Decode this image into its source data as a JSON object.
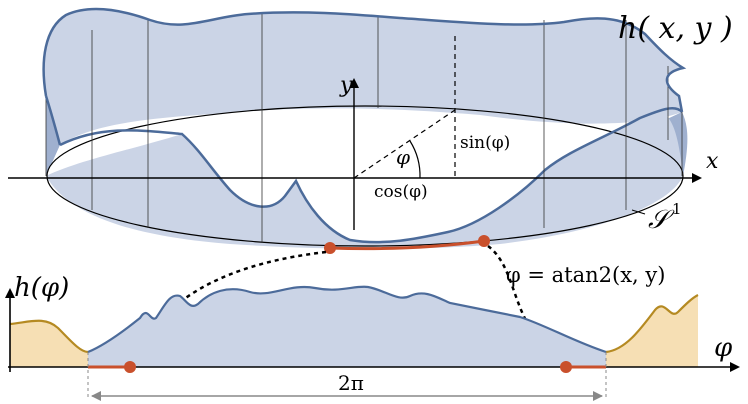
{
  "labels": {
    "surface": "h( x, y )",
    "x_axis": "x",
    "y_axis": "y",
    "angle": "φ",
    "sin": "sin(φ)",
    "cos": "cos(φ)",
    "circle": "𝒮",
    "circle_sup": "1",
    "atan": "φ = atan2(x, y)",
    "h_phi": "h(φ)",
    "phi_axis": "φ",
    "period": "2π"
  },
  "colors": {
    "surface_fill": "#cbd4e6",
    "surface_stroke": "#4c6b9a",
    "arc": "#c9502c",
    "padding_fill": "#f6dfb4",
    "padding_stroke": "#b58a22",
    "axis": "#000000",
    "dimension": "#888888"
  }
}
